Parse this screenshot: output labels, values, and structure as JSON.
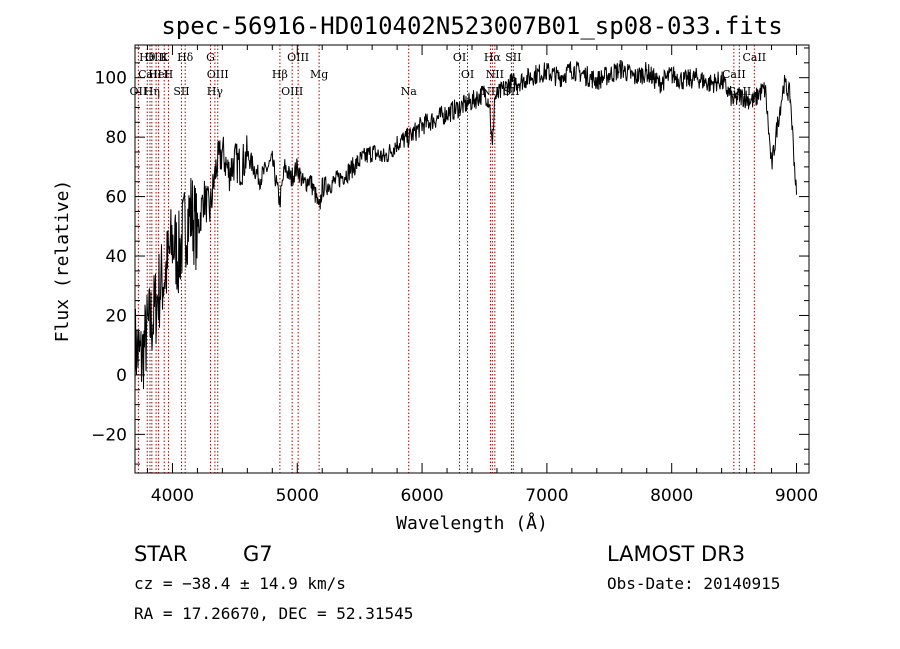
{
  "chart_data": {
    "type": "line",
    "title": "spec-56916-HD010402N523007B01_sp08-033.fits",
    "xlabel": "Wavelength (Å)",
    "ylabel": "Flux (relative)",
    "xlim": [
      3700,
      9100
    ],
    "ylim": [
      -33,
      111
    ],
    "x_ticks": [
      4000,
      5000,
      6000,
      7000,
      8000,
      9000
    ],
    "x_tick_labels": [
      "4000",
      "5000",
      "6000",
      "7000",
      "8000",
      "9000"
    ],
    "y_ticks": [
      -20,
      0,
      20,
      40,
      60,
      80,
      100
    ],
    "y_tick_labels": [
      "−20",
      "0",
      "20",
      "40",
      "60",
      "80",
      "100"
    ],
    "grid": false,
    "series": [
      {
        "name": "flux",
        "x": [
          3700,
          3750,
          3800,
          3850,
          3900,
          3950,
          4000,
          4050,
          4100,
          4150,
          4200,
          4250,
          4300,
          4350,
          4400,
          4450,
          4500,
          4550,
          4600,
          4700,
          4800,
          4860,
          4900,
          4950,
          5000,
          5050,
          5100,
          5150,
          5175,
          5200,
          5300,
          5400,
          5500,
          5600,
          5700,
          5800,
          5900,
          6000,
          6100,
          6200,
          6300,
          6400,
          6500,
          6540,
          6563,
          6580,
          6650,
          6700,
          6800,
          6900,
          7000,
          7100,
          7200,
          7300,
          7400,
          7500,
          7600,
          7700,
          7800,
          7900,
          8000,
          8100,
          8200,
          8300,
          8400,
          8498,
          8542,
          8600,
          8662,
          8700,
          8750,
          8800,
          8850,
          8900,
          8950,
          9000
        ],
        "y": [
          10,
          5,
          15,
          20,
          30,
          35,
          45,
          40,
          50,
          55,
          48,
          60,
          55,
          70,
          75,
          68,
          72,
          70,
          74,
          66,
          72,
          58,
          70,
          66,
          70,
          64,
          66,
          60,
          55,
          63,
          65,
          68,
          72,
          75,
          73,
          78,
          80,
          84,
          86,
          88,
          90,
          92,
          95,
          92,
          75,
          93,
          96,
          98,
          99,
          101,
          102,
          100,
          103,
          101,
          99,
          101,
          103,
          100,
          102,
          98,
          101,
          99,
          100,
          98,
          99,
          92,
          94,
          93,
          92,
          95,
          96,
          70,
          85,
          98,
          94,
          60
        ]
      }
    ],
    "lines": [
      {
        "label": "Hθ",
        "x": 3798
      },
      {
        "label": "CaII",
        "x": 3820
      },
      {
        "label": "OII",
        "x": 3727
      },
      {
        "label": "OIII",
        "x": 3869
      },
      {
        "label": "HeI",
        "x": 3889
      },
      {
        "label": "Hη",
        "x": 3835
      },
      {
        "label": "K",
        "x": 3934
      },
      {
        "label": "H",
        "x": 3968
      },
      {
        "label": "SII",
        "x": 4072
      },
      {
        "label": "Hδ",
        "x": 4102
      },
      {
        "label": "OIII",
        "x": 4363
      },
      {
        "label": "Hγ",
        "x": 4340
      },
      {
        "label": "G",
        "x": 4305
      },
      {
        "label": "Hβ",
        "x": 4861
      },
      {
        "label": "OIII",
        "x": 4959
      },
      {
        "label": "OIII",
        "x": 5007
      },
      {
        "label": "Mg",
        "x": 5175
      },
      {
        "label": "Na",
        "x": 5893
      },
      {
        "label": "OI",
        "x": 6300
      },
      {
        "label": "OI",
        "x": 6364
      },
      {
        "label": "NII",
        "x": 6548
      },
      {
        "label": "Hα",
        "x": 6563
      },
      {
        "label": "NII",
        "x": 6583
      },
      {
        "label": "SII",
        "x": 6716
      },
      {
        "label": "SII",
        "x": 6731
      },
      {
        "label": "CaII",
        "x": 8498
      },
      {
        "label": "CaII",
        "x": 8542
      },
      {
        "label": "CaII",
        "x": 8662
      }
    ]
  },
  "info": {
    "object_type": "STAR",
    "subclass": "G7",
    "survey": "LAMOST DR3",
    "cz_text": "cz = −38.4 ± 14.9 km/s",
    "obs_date_text": "Obs-Date: 20140915",
    "coords_text": "RA =  17.26670, DEC =  52.31545"
  },
  "colors": {
    "spectrum": "#000000",
    "lines": "#b00000",
    "axes": "#000000"
  }
}
